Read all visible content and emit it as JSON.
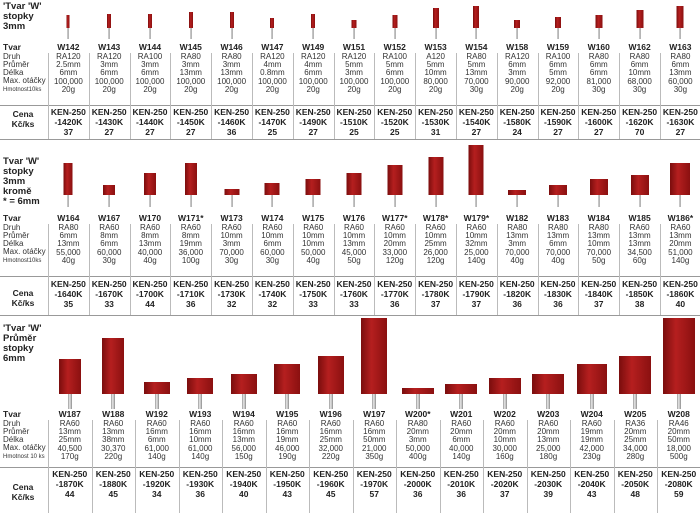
{
  "labels": {
    "tvar": "Tvar",
    "druh": "Druh",
    "prumer": "Průměr",
    "delka": "Délka",
    "otacky": "Max. otáčky",
    "hmotnost_a": "Hmotnost10ks",
    "hmotnost_b": "Hmotnost 10 ks",
    "cena": "Cena\nKč/ks"
  },
  "sections": [
    {
      "title": "'Tvar 'W'\nstopky\n3mm",
      "items": [
        {
          "code": "W142",
          "druh": "RA120",
          "prumer": "2.5mm",
          "delka": "6mm",
          "otacky": "100,000",
          "hmotnost": "20g",
          "ken": "KEN-250",
          "kat": "-1420K",
          "cena": "37"
        },
        {
          "code": "W143",
          "druh": "RA120",
          "prumer": "3mm",
          "delka": "6mm",
          "otacky": "100,000",
          "hmotnost": "20g",
          "ken": "KEN-250",
          "kat": "-1430K",
          "cena": "27"
        },
        {
          "code": "W144",
          "druh": "RA100",
          "prumer": "3mm",
          "delka": "6mm",
          "otacky": "100,000",
          "hmotnost": "20g",
          "ken": "KEN-250",
          "kat": "-1440K",
          "cena": "27"
        },
        {
          "code": "W145",
          "druh": "RA80",
          "prumer": "3mm",
          "delka": "13mm",
          "otacky": "100,000",
          "hmotnost": "20g",
          "ken": "KEN-250",
          "kat": "-1450K",
          "cena": "27"
        },
        {
          "code": "W146",
          "druh": "RA80",
          "prumer": "3mm",
          "delka": "13mm",
          "otacky": "100,000",
          "hmotnost": "20g",
          "ken": "KEN-250",
          "kat": "-1460K",
          "cena": "36"
        },
        {
          "code": "W147",
          "druh": "RA120",
          "prumer": "4mm",
          "delka": "0.8mm",
          "otacky": "100,000",
          "hmotnost": "20g",
          "ken": "KEN-250",
          "kat": "-1470K",
          "cena": "25"
        },
        {
          "code": "W149",
          "druh": "RA120",
          "prumer": "4mm",
          "delka": "6mm",
          "otacky": "100,000",
          "hmotnost": "20g",
          "ken": "KEN-250",
          "kat": "-1490K",
          "cena": "27"
        },
        {
          "code": "W151",
          "druh": "RA120",
          "prumer": "5mm",
          "delka": "3mm",
          "otacky": "100,000",
          "hmotnost": "20g",
          "ken": "KEN-250",
          "kat": "-1510K",
          "cena": "25"
        },
        {
          "code": "W152",
          "druh": "RA100",
          "prumer": "5mm",
          "delka": "6mm",
          "otacky": "100,000",
          "hmotnost": "20g",
          "ken": "KEN-250",
          "kat": "-1520K",
          "cena": "25"
        },
        {
          "code": "W153",
          "druh": "A120",
          "prumer": "5mm",
          "delka": "10mm",
          "otacky": "80,000",
          "hmotnost": "20g",
          "ken": "KEN-250",
          "kat": "-1530K",
          "cena": "31"
        },
        {
          "code": "W154",
          "druh": "RA80",
          "prumer": "5mm",
          "delka": "13mm",
          "otacky": "70,000",
          "hmotnost": "30g",
          "ken": "KEN-250",
          "kat": "-1540K",
          "cena": "27"
        },
        {
          "code": "W158",
          "druh": "RA120",
          "prumer": "6mm",
          "delka": "3mm",
          "otacky": "90,000",
          "hmotnost": "20g",
          "ken": "KEN-250",
          "kat": "-1580K",
          "cena": "24"
        },
        {
          "code": "W159",
          "druh": "RA100",
          "prumer": "6mm",
          "delka": "5mm",
          "otacky": "92,000",
          "hmotnost": "20g",
          "ken": "KEN-250",
          "kat": "-1590K",
          "cena": "27"
        },
        {
          "code": "W160",
          "druh": "RA80",
          "prumer": "6mm",
          "delka": "6mm",
          "otacky": "81,000",
          "hmotnost": "30g",
          "ken": "KEN-250",
          "kat": "-1600K",
          "cena": "27"
        },
        {
          "code": "W162",
          "druh": "RA80",
          "prumer": "6mm",
          "delka": "10mm",
          "otacky": "68,000",
          "hmotnost": "30g",
          "ken": "KEN-250",
          "kat": "-1620K",
          "cena": "70"
        },
        {
          "code": "W163",
          "druh": "RA80",
          "prumer": "6mm",
          "delka": "13mm",
          "otacky": "60,000",
          "hmotnost": "30g",
          "ken": "KEN-250",
          "kat": "-1630K",
          "cena": "27"
        }
      ]
    },
    {
      "title": "Tvar 'W'\nstopky\n3mm\nkromě\n* = 6mm",
      "items": [
        {
          "code": "W164",
          "druh": "RA80",
          "prumer": "6mm",
          "delka": "13mm",
          "otacky": "55,000",
          "hmotnost": "40g",
          "ken": "KEN-250",
          "kat": "-1640K",
          "cena": "35"
        },
        {
          "code": "W167",
          "druh": "RA60",
          "prumer": "8mm",
          "delka": "6mm",
          "otacky": "60,000",
          "hmotnost": "30g",
          "ken": "KEN-250",
          "kat": "-1670K",
          "cena": "33"
        },
        {
          "code": "W170",
          "druh": "RA60",
          "prumer": "8mm",
          "delka": "13mm",
          "otacky": "40,000",
          "hmotnost": "40g",
          "ken": "KEN-250",
          "kat": "-1700K",
          "cena": "44"
        },
        {
          "code": "W171*",
          "druh": "RA60",
          "prumer": "8mm",
          "delka": "19mm",
          "otacky": "36,000",
          "hmotnost": "100g",
          "ken": "KEN-250",
          "kat": "-1710K",
          "cena": "36"
        },
        {
          "code": "W173",
          "druh": "RA60",
          "prumer": "10mm",
          "delka": "3mm",
          "otacky": "70,000",
          "hmotnost": "30g",
          "ken": "KEN-250",
          "kat": "-1730K",
          "cena": "32"
        },
        {
          "code": "W174",
          "druh": "RA60",
          "prumer": "10mm",
          "delka": "6mm",
          "otacky": "60,000",
          "hmotnost": "30g",
          "ken": "KEN-250",
          "kat": "-1740K",
          "cena": "32"
        },
        {
          "code": "W175",
          "druh": "RA60",
          "prumer": "10mm",
          "delka": "10mm",
          "otacky": "50,000",
          "hmotnost": "40g",
          "ken": "KEN-250",
          "kat": "-1750K",
          "cena": "33"
        },
        {
          "code": "W176",
          "druh": "RA60",
          "prumer": "10mm",
          "delka": "13mm",
          "otacky": "45,000",
          "hmotnost": "50g",
          "ken": "KEN-250",
          "kat": "-1760K",
          "cena": "33"
        },
        {
          "code": "W177*",
          "druh": "RA60",
          "prumer": "10mm",
          "delka": "20mm",
          "otacky": "33,000",
          "hmotnost": "120g",
          "ken": "KEN-250",
          "kat": "-1770K",
          "cena": "36"
        },
        {
          "code": "W178*",
          "druh": "RA60",
          "prumer": "10mm",
          "delka": "25mm",
          "otacky": "26,000",
          "hmotnost": "120g",
          "ken": "KEN-250",
          "kat": "-1780K",
          "cena": "37"
        },
        {
          "code": "W179*",
          "druh": "RA60",
          "prumer": "10mm",
          "delka": "32mm",
          "otacky": "25,000",
          "hmotnost": "140g",
          "ken": "KEN-250",
          "kat": "-1790K",
          "cena": "37"
        },
        {
          "code": "W182",
          "druh": "RA80",
          "prumer": "13mm",
          "delka": "3mm",
          "otacky": "70,000",
          "hmotnost": "40g",
          "ken": "KEN-250",
          "kat": "-1820K",
          "cena": "36"
        },
        {
          "code": "W183",
          "druh": "RA80",
          "prumer": "13mm",
          "delka": "6mm",
          "otacky": "70,000",
          "hmotnost": "40g",
          "ken": "KEN-250",
          "kat": "-1830K",
          "cena": "36"
        },
        {
          "code": "W184",
          "druh": "RA80",
          "prumer": "13mm",
          "delka": "10mm",
          "otacky": "70,000",
          "hmotnost": "50g",
          "ken": "KEN-250",
          "kat": "-1840K",
          "cena": "37"
        },
        {
          "code": "W185",
          "druh": "RA60",
          "prumer": "13mm",
          "delka": "13mm",
          "otacky": "34,500",
          "hmotnost": "60g",
          "ken": "KEN-250",
          "kat": "-1850K",
          "cena": "38"
        },
        {
          "code": "W186*",
          "druh": "RA60",
          "prumer": "13mm",
          "delka": "20mm",
          "otacky": "51,000",
          "hmotnost": "140g",
          "ken": "KEN-250",
          "kat": "-1860K",
          "cena": "40"
        }
      ]
    },
    {
      "title": "'Tvar 'W'\nPrůměr\nstopky\n6mm",
      "items": [
        {
          "code": "W187",
          "druh": "RA60",
          "prumer": "13mm",
          "delka": "25mm",
          "otacky": "40,500",
          "hmotnost": "170g",
          "ken": "KEN-250",
          "kat": "-1870K",
          "cena": "44"
        },
        {
          "code": "W188",
          "druh": "RA60",
          "prumer": "13mm",
          "delka": "38mm",
          "otacky": "30,370",
          "hmotnost": "220g",
          "ken": "KEN-250",
          "kat": "-1880K",
          "cena": "45"
        },
        {
          "code": "W192",
          "druh": "RA60",
          "prumer": "16mm",
          "delka": "6mm",
          "otacky": "61,000",
          "hmotnost": "140g",
          "ken": "KEN-250",
          "kat": "-1920K",
          "cena": "34"
        },
        {
          "code": "W193",
          "druh": "RA60",
          "prumer": "16mm",
          "delka": "10mm",
          "otacky": "61,000",
          "hmotnost": "140g",
          "ken": "KEN-250",
          "kat": "-1930K",
          "cena": "36"
        },
        {
          "code": "W194",
          "druh": "RA60",
          "prumer": "16mm",
          "delka": "13mm",
          "otacky": "56,000",
          "hmotnost": "150g",
          "ken": "KEN-250",
          "kat": "-1940K",
          "cena": "40"
        },
        {
          "code": "W195",
          "druh": "RA60",
          "prumer": "16mm",
          "delka": "19mm",
          "otacky": "46,000",
          "hmotnost": "190g",
          "ken": "KEN-250",
          "kat": "-1950K",
          "cena": "43"
        },
        {
          "code": "W196",
          "druh": "RA60",
          "prumer": "16mm",
          "delka": "25mm",
          "otacky": "32,000",
          "hmotnost": "220g",
          "ken": "KEN-250",
          "kat": "-1960K",
          "cena": "45"
        },
        {
          "code": "W197",
          "druh": "RA60",
          "prumer": "16mm",
          "delka": "50mm",
          "otacky": "21,000",
          "hmotnost": "350g",
          "ken": "KEN-250",
          "kat": "-1970K",
          "cena": "57"
        },
        {
          "code": "W200*",
          "druh": "RA80",
          "prumer": "20mm",
          "delka": "3mm",
          "otacky": "50,000",
          "hmotnost": "400g",
          "ken": "KEN-250",
          "kat": "-2000K",
          "cena": "36"
        },
        {
          "code": "W201",
          "druh": "RA60",
          "prumer": "20mm",
          "delka": "6mm",
          "otacky": "40,000",
          "hmotnost": "140g",
          "ken": "KEN-250",
          "kat": "-2010K",
          "cena": "36"
        },
        {
          "code": "W202",
          "druh": "RA60",
          "prumer": "20mm",
          "delka": "10mm",
          "otacky": "30,000",
          "hmotnost": "160g",
          "ken": "KEN-250",
          "kat": "-2020K",
          "cena": "37"
        },
        {
          "code": "W203",
          "druh": "RA60",
          "prumer": "20mm",
          "delka": "13mm",
          "otacky": "25,000",
          "hmotnost": "180g",
          "ken": "KEN-250",
          "kat": "-2030K",
          "cena": "39"
        },
        {
          "code": "W204",
          "druh": "RA60",
          "prumer": "19mm",
          "delka": "19mm",
          "otacky": "42,000",
          "hmotnost": "230g",
          "ken": "KEN-250",
          "kat": "-2040K",
          "cena": "43"
        },
        {
          "code": "W205",
          "druh": "RA36",
          "prumer": "20mm",
          "delka": "25mm",
          "otacky": "34,000",
          "hmotnost": "280g",
          "ken": "KEN-250",
          "kat": "-2050K",
          "cena": "48"
        },
        {
          "code": "W208",
          "druh": "RA46",
          "prumer": "20mm",
          "delka": "50mm",
          "otacky": "18,000",
          "hmotnost": "500g",
          "ken": "KEN-250",
          "kat": "-2080K",
          "cena": "59"
        }
      ]
    }
  ]
}
